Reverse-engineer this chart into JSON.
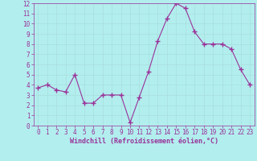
{
  "x": [
    0,
    1,
    2,
    3,
    4,
    5,
    6,
    7,
    8,
    9,
    10,
    11,
    12,
    13,
    14,
    15,
    16,
    17,
    18,
    19,
    20,
    21,
    22,
    23
  ],
  "y": [
    3.7,
    4.0,
    3.5,
    3.3,
    5.0,
    2.2,
    2.2,
    3.0,
    3.0,
    3.0,
    0.3,
    2.8,
    5.3,
    8.3,
    10.5,
    12.0,
    11.5,
    9.2,
    8.0,
    8.0,
    8.0,
    7.5,
    5.5,
    4.0
  ],
  "xlabel": "Windchill (Refroidissement éolien,°C)",
  "line_color": "#993399",
  "marker_color": "#993399",
  "bg_color": "#b2eeee",
  "grid_color": "#cceeee",
  "xlim": [
    -0.5,
    23.5
  ],
  "ylim": [
    0,
    12
  ],
  "yticks": [
    0,
    1,
    2,
    3,
    4,
    5,
    6,
    7,
    8,
    9,
    10,
    11,
    12
  ],
  "xticks": [
    0,
    1,
    2,
    3,
    4,
    5,
    6,
    7,
    8,
    9,
    10,
    11,
    12,
    13,
    14,
    15,
    16,
    17,
    18,
    19,
    20,
    21,
    22,
    23
  ],
  "tick_fontsize": 5.5,
  "label_fontsize": 6.0,
  "tick_color": "#993399",
  "spine_color": "#993399"
}
